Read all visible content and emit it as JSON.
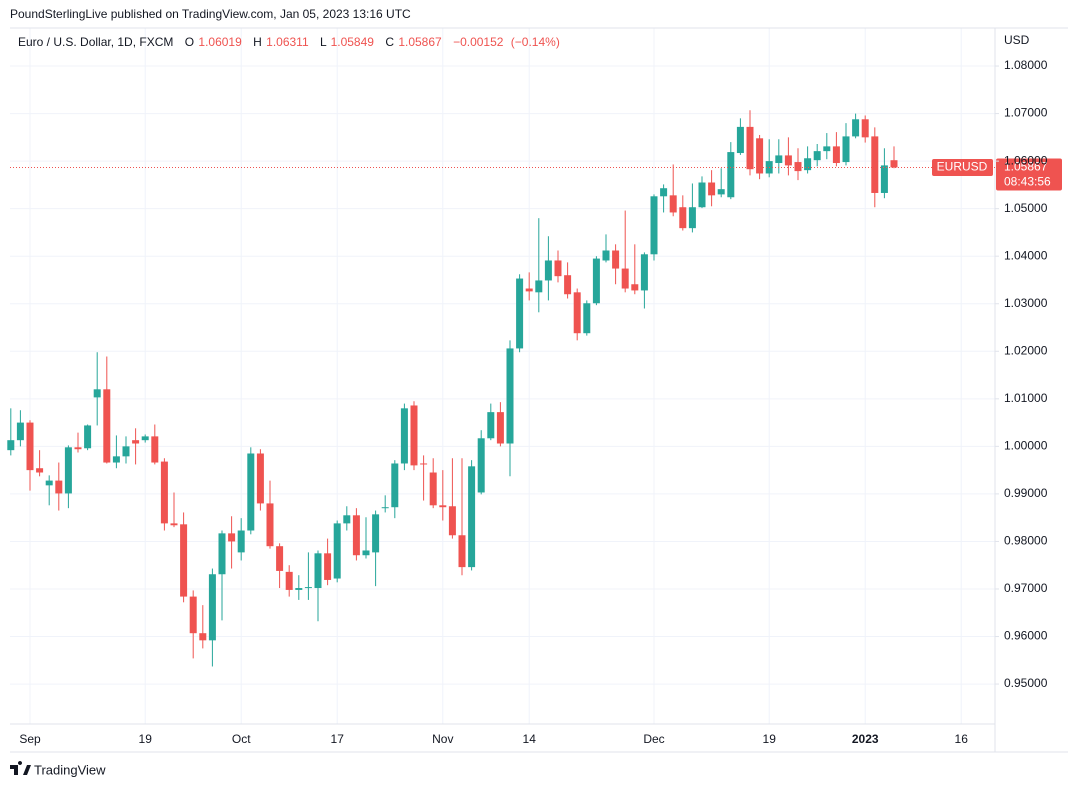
{
  "header": {
    "publisher": "PoundSterlingLive published on TradingView.com, Jan 05, 2023 13:16 UTC",
    "symbol": "Euro / U.S. Dollar, 1D, FXCM",
    "open_label": "O",
    "high_label": "H",
    "low_label": "L",
    "close_label": "C",
    "change": {
      "value": -0.00152,
      "label": "−0.00152"
    },
    "change_pct": {
      "value": -0.14,
      "label": "(−0.14%)"
    }
  },
  "chart_data": {
    "type": "candlestick",
    "y_unit": "USD",
    "ticker": "EURUSD",
    "countdown": "08:43:56",
    "up_color": "#26a69a",
    "down_color": "#ef5350",
    "grid": true,
    "ylim": [
      0.9416,
      1.088
    ],
    "yticks": [
      {
        "value": 0.95,
        "label": "0.95000"
      },
      {
        "value": 0.96,
        "label": "0.96000"
      },
      {
        "value": 0.97,
        "label": "0.97000"
      },
      {
        "value": 0.98,
        "label": "0.98000"
      },
      {
        "value": 0.99,
        "label": "0.99000"
      },
      {
        "value": 1.0,
        "label": "1.00000"
      },
      {
        "value": 1.01,
        "label": "1.01000"
      },
      {
        "value": 1.02,
        "label": "1.02000"
      },
      {
        "value": 1.03,
        "label": "1.03000"
      },
      {
        "value": 1.04,
        "label": "1.04000"
      },
      {
        "value": 1.05,
        "label": "1.05000"
      },
      {
        "value": 1.06,
        "label": "1.06000"
      },
      {
        "value": 1.07,
        "label": "1.07000"
      },
      {
        "value": 1.08,
        "label": "1.08000"
      }
    ],
    "categories": [
      null,
      null,
      "Sep",
      null,
      null,
      null,
      null,
      null,
      null,
      null,
      null,
      null,
      null,
      null,
      "19",
      null,
      null,
      null,
      null,
      null,
      null,
      null,
      null,
      null,
      "Oct",
      null,
      null,
      null,
      null,
      null,
      null,
      null,
      null,
      null,
      "17",
      null,
      null,
      null,
      null,
      null,
      null,
      null,
      null,
      null,
      null,
      "Nov",
      null,
      null,
      null,
      null,
      null,
      null,
      null,
      null,
      "14",
      null,
      null,
      null,
      null,
      null,
      null,
      null,
      null,
      null,
      null,
      null,
      null,
      "Dec",
      null,
      null,
      null,
      null,
      null,
      null,
      null,
      null,
      null,
      null,
      null,
      "19",
      null,
      null,
      null,
      null,
      null,
      null,
      null,
      null,
      null,
      "2023",
      null,
      null,
      null,
      null,
      null,
      null,
      null,
      null,
      null,
      "16",
      null,
      null,
      null
    ],
    "open": [
      0.9992,
      1.0013,
      1.005,
      0.9954,
      0.9918,
      0.9928,
      0.9901,
      0.9998,
      0.9996,
      1.0103,
      1.012,
      0.9966,
      0.9979,
      1.0013,
      1.0013,
      1.0021,
      0.9968,
      0.9838,
      0.9836,
      0.9684,
      0.9607,
      0.9592,
      0.9731,
      0.9817,
      0.9777,
      0.9823,
      0.9985,
      0.988,
      0.979,
      0.9736,
      0.9698,
      0.9702,
      0.9702,
      0.9775,
      0.9722,
      0.9838,
      0.9855,
      0.9771,
      0.9777,
      0.987,
      0.9872,
      0.9964,
      1.0086,
      0.9964,
      0.9945,
      0.9876,
      0.9874,
      0.9813,
      0.9746,
      0.9903,
      1.0017,
      1.0072,
      1.0006,
      1.0206,
      1.0332,
      1.0324,
      1.0349,
      1.0391,
      1.036,
      1.0324,
      1.0238,
      1.0301,
      1.0391,
      1.0412,
      1.0374,
      1.0341,
      1.0328,
      1.0404,
      1.0526,
      1.0528,
      1.0503,
      1.0459,
      1.0503,
      1.0555,
      1.053,
      1.0524,
      1.0617,
      1.0672,
      1.0648,
      1.0574,
      1.0596,
      1.0612,
      1.0598,
      1.0581,
      1.0602,
      1.0621,
      1.0631,
      1.0598,
      1.0652,
      1.0688,
      1.0652,
      1.0533,
      1.06019,
      null,
      null,
      null,
      null,
      null,
      null,
      null,
      null,
      null,
      null
    ],
    "high": [
      1.008,
      1.0076,
      1.0055,
      0.9992,
      0.9939,
      0.9966,
      1.0002,
      1.0029,
      1.0046,
      1.0198,
      1.0189,
      1.0023,
      1.0021,
      1.0038,
      1.0025,
      1.0046,
      0.9975,
      0.9903,
      0.9861,
      0.9697,
      0.9666,
      0.9743,
      0.9823,
      0.9853,
      0.9849,
      0.9998,
      0.9994,
      0.9928,
      0.9796,
      0.975,
      0.9729,
      0.9777,
      0.9781,
      0.9806,
      0.9844,
      0.9874,
      0.987,
      0.9851,
      0.9865,
      0.9897,
      0.9971,
      1.009,
      1.0095,
      0.9981,
      0.9975,
      0.995,
      0.9975,
      0.9975,
      0.9971,
      1.0034,
      1.009,
      1.0093,
      1.0223,
      1.0362,
      1.0366,
      1.048,
      1.0442,
      1.0412,
      1.0387,
      1.0332,
      1.0307,
      1.04,
      1.0446,
      1.0425,
      1.0496,
      1.0425,
      1.0408,
      1.053,
      1.0551,
      1.0593,
      1.0528,
      1.0553,
      1.0568,
      1.0581,
      1.0585,
      1.064,
      1.069,
      1.0707,
      1.0655,
      1.0646,
      1.0646,
      1.065,
      1.0627,
      1.0631,
      1.0636,
      1.0659,
      1.0661,
      1.068,
      1.07,
      1.0696,
      1.0671,
      1.0627,
      1.06311,
      null,
      null,
      null,
      null,
      null,
      null,
      null,
      null,
      null,
      null
    ],
    "low": [
      0.9981,
      1.0,
      0.9907,
      0.9937,
      0.9876,
      0.9865,
      0.987,
      0.9987,
      0.9992,
      1.0044,
      0.9964,
      0.9954,
      0.9964,
      0.9962,
      1.0008,
      0.9962,
      0.9823,
      0.983,
      0.9672,
      0.9554,
      0.9575,
      0.9537,
      0.9634,
      0.9743,
      0.976,
      0.9815,
      0.9865,
      0.9785,
      0.9702,
      0.9684,
      0.9677,
      0.9677,
      0.9632,
      0.9708,
      0.9714,
      0.9823,
      0.976,
      0.9764,
      0.9706,
      0.9861,
      0.9849,
      0.995,
      0.995,
      0.9886,
      0.987,
      0.9844,
      0.9806,
      0.9729,
      0.9739,
      0.9899,
      1.0013,
      1.0,
      0.9937,
      1.0198,
      1.0307,
      1.0282,
      1.0307,
      1.0345,
      1.0311,
      1.0223,
      1.0233,
      1.0297,
      1.0387,
      1.0341,
      1.0324,
      1.032,
      1.029,
      1.0391,
      1.0492,
      1.0484,
      1.0454,
      1.045,
      1.0501,
      1.0505,
      1.0524,
      1.052,
      1.0613,
      1.057,
      1.0562,
      1.0566,
      1.0574,
      1.057,
      1.056,
      1.0574,
      1.0589,
      1.0604,
      1.0589,
      1.0591,
      1.0648,
      1.0639,
      1.0503,
      1.0522,
      1.05849,
      null,
      null,
      null,
      null,
      null,
      null,
      null,
      null,
      null,
      null
    ],
    "close": [
      1.0013,
      1.005,
      0.995,
      0.9945,
      0.9928,
      0.9901,
      0.9998,
      0.9994,
      1.0044,
      1.012,
      0.9966,
      0.9979,
      1.0,
      1.0006,
      1.0021,
      0.9966,
      0.9838,
      0.9834,
      0.9684,
      0.9607,
      0.9592,
      0.9731,
      0.9817,
      0.98,
      0.9823,
      0.9985,
      0.988,
      0.979,
      0.9738,
      0.9698,
      0.9702,
      0.9704,
      0.9775,
      0.9719,
      0.9838,
      0.9855,
      0.9771,
      0.9781,
      0.9857,
      0.9872,
      0.9964,
      1.008,
      0.996,
      0.9962,
      0.9876,
      0.9872,
      0.9813,
      0.9746,
      0.9958,
      1.0017,
      1.0072,
      1.0006,
      1.0206,
      1.0353,
      1.0326,
      1.0349,
      1.0391,
      1.0358,
      1.032,
      1.0238,
      1.0301,
      1.0395,
      1.0412,
      1.0374,
      1.0332,
      1.0328,
      1.0404,
      1.0526,
      1.0543,
      1.0492,
      1.0459,
      1.0503,
      1.0555,
      1.0528,
      1.0541,
      1.0619,
      1.0672,
      1.0583,
      1.0574,
      1.06,
      1.0612,
      1.0591,
      1.0579,
      1.0606,
      1.0621,
      1.0631,
      1.0596,
      1.0652,
      1.0688,
      1.065,
      1.0533,
      1.0591,
      1.05867,
      null,
      null,
      null,
      null,
      null,
      null,
      null,
      null,
      null,
      null
    ]
  },
  "footer": {
    "brand": "TradingView"
  }
}
